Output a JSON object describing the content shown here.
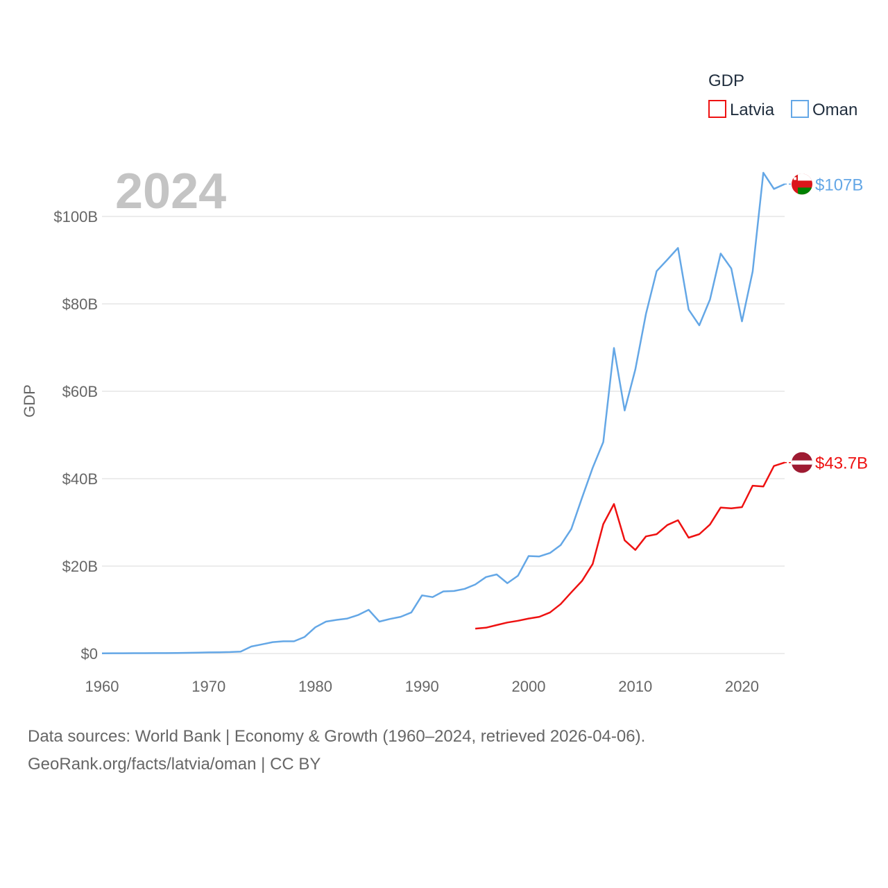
{
  "chart_data": {
    "type": "line",
    "title": "GDP",
    "year_label": "2024",
    "ylabel": "GDP",
    "xlim": [
      1960,
      2024
    ],
    "ylim": [
      0,
      110
    ],
    "x_ticks": [
      1960,
      1970,
      1980,
      1990,
      2000,
      2010,
      2020
    ],
    "y_ticks": [
      {
        "value": 0,
        "label": "$0"
      },
      {
        "value": 20,
        "label": "$20B"
      },
      {
        "value": 40,
        "label": "$40B"
      },
      {
        "value": 60,
        "label": "$60B"
      },
      {
        "value": 80,
        "label": "$80B"
      },
      {
        "value": 100,
        "label": "$100B"
      }
    ],
    "legend_title": "GDP",
    "series": [
      {
        "name": "Latvia",
        "color": "#ee1111",
        "end_label": "$43.7B",
        "flag": "latvia-flag",
        "x": [
          1995,
          1996,
          1997,
          1998,
          1999,
          2000,
          2001,
          2002,
          2003,
          2004,
          2005,
          2006,
          2007,
          2008,
          2009,
          2010,
          2011,
          2012,
          2013,
          2014,
          2015,
          2016,
          2017,
          2018,
          2019,
          2020,
          2021,
          2022,
          2023,
          2024
        ],
        "values": [
          5.7,
          5.9,
          6.5,
          7.1,
          7.5,
          8.0,
          8.4,
          9.4,
          11.3,
          14.0,
          16.6,
          20.5,
          29.6,
          34.2,
          25.9,
          23.7,
          26.8,
          27.3,
          29.4,
          30.5,
          26.5,
          27.3,
          29.5,
          33.4,
          33.2,
          33.5,
          38.4,
          38.2,
          42.9,
          43.7
        ]
      },
      {
        "name": "Oman",
        "color": "#64a7e6",
        "end_label": "$107B",
        "flag": "oman-flag",
        "x": [
          1960,
          1961,
          1962,
          1963,
          1964,
          1965,
          1966,
          1967,
          1968,
          1969,
          1970,
          1971,
          1972,
          1973,
          1974,
          1975,
          1976,
          1977,
          1978,
          1979,
          1980,
          1981,
          1982,
          1983,
          1984,
          1985,
          1986,
          1987,
          1988,
          1989,
          1990,
          1991,
          1992,
          1993,
          1994,
          1995,
          1996,
          1997,
          1998,
          1999,
          2000,
          2001,
          2002,
          2003,
          2004,
          2005,
          2006,
          2007,
          2008,
          2009,
          2010,
          2011,
          2012,
          2013,
          2014,
          2015,
          2016,
          2017,
          2018,
          2019,
          2020,
          2021,
          2022,
          2023,
          2024
        ],
        "values": [
          0.05,
          0.06,
          0.07,
          0.08,
          0.08,
          0.09,
          0.1,
          0.13,
          0.16,
          0.19,
          0.26,
          0.29,
          0.33,
          0.45,
          1.6,
          2.1,
          2.6,
          2.8,
          2.8,
          3.8,
          6.0,
          7.3,
          7.7,
          8.0,
          8.8,
          10.0,
          7.3,
          7.9,
          8.4,
          9.4,
          13.3,
          12.9,
          14.2,
          14.3,
          14.8,
          15.8,
          17.5,
          18.1,
          16.1,
          17.8,
          22.3,
          22.2,
          23.0,
          24.8,
          28.5,
          35.6,
          42.5,
          48.4,
          69.9,
          55.6,
          65.0,
          77.7,
          87.5,
          90.1,
          92.8,
          78.7,
          75.1,
          81.0,
          91.5,
          88.1,
          76.0,
          87.4,
          110.0,
          106.3,
          107.4
        ]
      }
    ]
  },
  "footer": {
    "line1": "Data sources: World Bank | Economy & Growth (1960–2024, retrieved 2026-04-06).",
    "line2": "GeoRank.org/facts/latvia/oman | CC BY"
  }
}
